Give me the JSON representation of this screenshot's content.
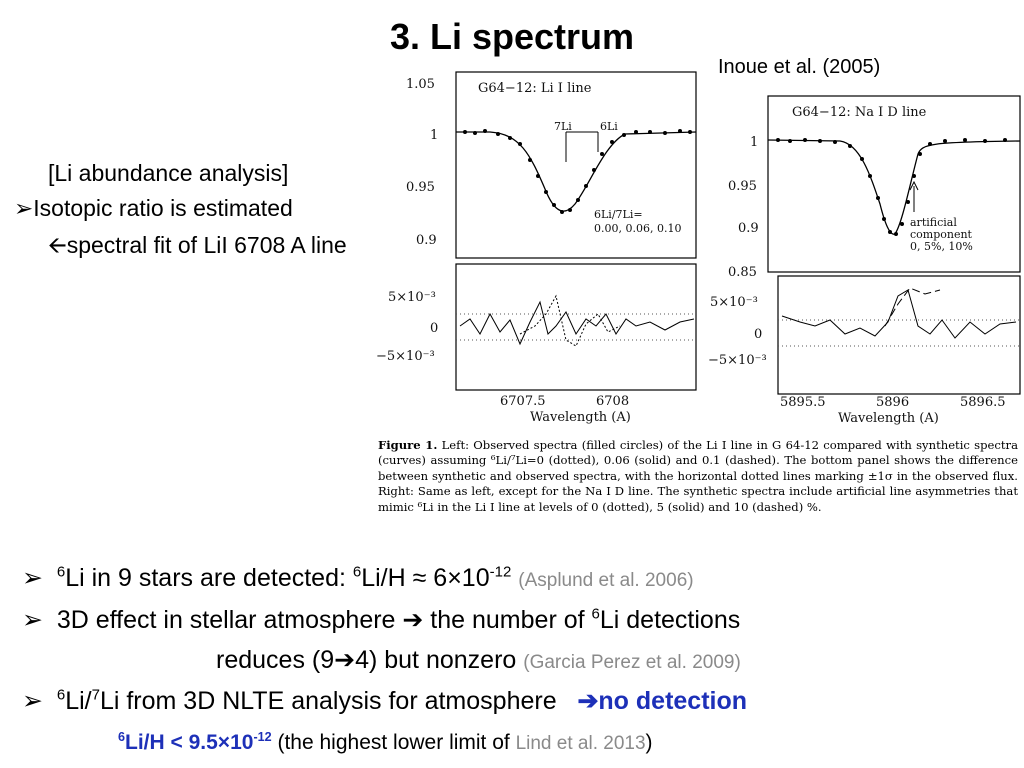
{
  "title": "3. Li spectrum",
  "citation": "Inoue et al. (2005)",
  "analysis": {
    "heading": "[Li abundance analysis]",
    "line1": "Isotopic ratio is estimated",
    "line2": "spectral fit of LiI 6708 A line"
  },
  "figure": {
    "left_top": {
      "label": "G64−12: Li I line",
      "y_ticks": [
        "1.05",
        "1",
        "0.95",
        "0.9"
      ],
      "marker_7li": "7Li",
      "marker_6li": "6Li",
      "ratio_label": "6Li/7Li=",
      "ratio_values": "0.00, 0.06, 0.10"
    },
    "left_bottom": {
      "y_ticks": [
        "5×10⁻³",
        "0",
        "−5×10⁻³"
      ],
      "x_ticks": [
        "6707.5",
        "6708"
      ],
      "xlabel": "Wavelength (A)"
    },
    "right_top": {
      "label": "G64−12: Na I D line",
      "y_ticks": [
        "1",
        "0.95",
        "0.9",
        "0.85"
      ],
      "annotation": [
        "artificial",
        "component",
        "0, 5%, 10%"
      ]
    },
    "right_bottom": {
      "y_ticks": [
        "5×10⁻³",
        "0",
        "−5×10⁻³"
      ],
      "x_ticks": [
        "5895.5",
        "5896",
        "5896.5"
      ],
      "xlabel": "Wavelength (A)"
    },
    "caption_label": "Figure 1.",
    "caption_text": "Left: Observed spectra (filled circles) of the Li I line in G 64-12 compared with synthetic spectra (curves) assuming ⁶Li/⁷Li=0 (dotted), 0.06 (solid) and 0.1 (dashed). The bottom panel shows the difference between synthetic and observed spectra, with the horizontal dotted lines marking ±1σ in the observed flux. Right: Same as left, except for the Na I D line. The synthetic spectra include artificial line asymmetries that mimic ⁶Li in the Li I line at levels of 0 (dotted), 5 (solid) and 10 (dashed) %."
  },
  "bullets": {
    "b1": {
      "sup1": "6",
      "text1": "Li in 9 stars are detected: ",
      "sup2": "6",
      "text2": "Li/H ≈ 6×10",
      "sup3": "-12",
      "ref": "(Asplund et al. 2006)"
    },
    "b2": {
      "line1_a": "3D effect in stellar atmosphere ",
      "line1_b": " the number of ",
      "sup": "6",
      "line1_c": "Li detections",
      "line2_a": "reduces (9",
      "line2_b": "4) but nonzero ",
      "ref": "(Garcia Perez et al. 2009)"
    },
    "b3": {
      "sup1": "6",
      "t1": "Li/",
      "sup2": "7",
      "t2": "Li from 3D NLTE analysis for atmosphere",
      "result": "no detection"
    },
    "b4": {
      "sup1": "6",
      "t1": "Li/H < 9.5×10",
      "sup2": "-12",
      "t2": " (the highest lower limit of ",
      "ref": "Lind et al. 2013",
      "t3": ")"
    }
  }
}
